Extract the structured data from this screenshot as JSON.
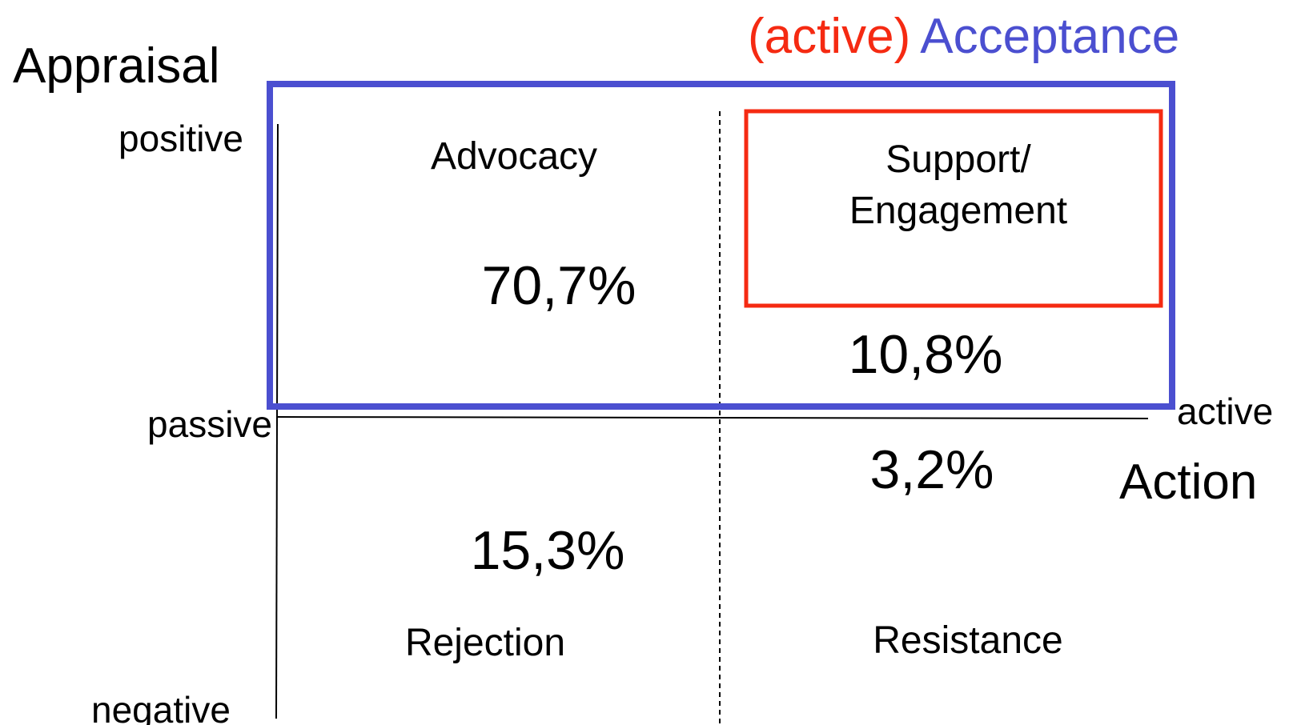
{
  "axes": {
    "y_title": "Appraisal",
    "y_top": "positive",
    "y_mid": "passive",
    "y_bottom": "negative",
    "x_right": "active",
    "x_title": "Action"
  },
  "highlight": {
    "prefix": "(active)",
    "label": "Acceptance"
  },
  "quadrants": [
    {
      "label": "Advocacy",
      "value": "70,7%"
    },
    {
      "label_lines": [
        "Support/",
        "Engagement"
      ],
      "value": "10,8%"
    },
    {
      "label": "Rejection",
      "value": "15,3%"
    },
    {
      "label": "Resistance",
      "value": "3,2%"
    }
  ]
}
